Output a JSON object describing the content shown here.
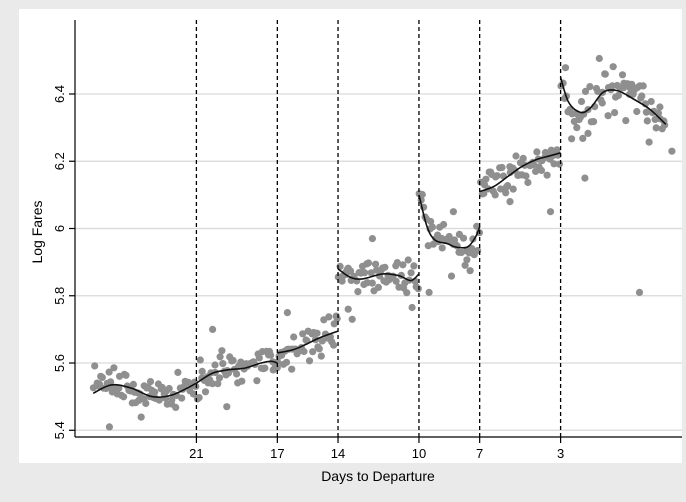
{
  "chart_data": {
    "type": "scatter",
    "title": "",
    "xlabel": "Days to Departure",
    "ylabel": "Log Fares",
    "x_reversed": true,
    "xlim": [
      27,
      -3
    ],
    "ylim": [
      5.38,
      6.62
    ],
    "xticks": [
      21,
      17,
      14,
      10,
      7,
      3
    ],
    "yticks": [
      5.4,
      5.6,
      5.8,
      6,
      6.2,
      6.4
    ],
    "ytick_labels": [
      "5.4",
      "5.6",
      "5.8",
      "6",
      "6.2",
      "6.4"
    ],
    "grid": true,
    "legend": "none",
    "breakpoints": [
      21,
      17,
      14,
      10,
      7,
      3
    ],
    "segments": [
      {
        "x_start": 26.1,
        "x_end": 21,
        "points": [
          [
            26.1,
            5.51
          ],
          [
            25.2,
            5.535
          ],
          [
            24.2,
            5.525
          ],
          [
            23.2,
            5.5
          ],
          [
            22.2,
            5.505
          ],
          [
            21,
            5.54
          ]
        ]
      },
      {
        "x_start": 21,
        "x_end": 17,
        "points": [
          [
            21,
            5.54
          ],
          [
            20.2,
            5.57
          ],
          [
            19.4,
            5.58
          ],
          [
            18.6,
            5.585
          ],
          [
            17.8,
            5.6
          ],
          [
            17.3,
            5.605
          ],
          [
            17,
            5.6
          ]
        ]
      },
      {
        "x_start": 17,
        "x_end": 14,
        "points": [
          [
            17,
            5.63
          ],
          [
            16.2,
            5.64
          ],
          [
            15.6,
            5.655
          ],
          [
            14.9,
            5.675
          ],
          [
            14,
            5.695
          ]
        ]
      },
      {
        "x_start": 14,
        "x_end": 10,
        "points": [
          [
            14,
            5.88
          ],
          [
            13.4,
            5.855
          ],
          [
            12.8,
            5.85
          ],
          [
            11.8,
            5.865
          ],
          [
            11,
            5.86
          ],
          [
            10.4,
            5.845
          ],
          [
            10,
            5.865
          ]
        ]
      },
      {
        "x_start": 10,
        "x_end": 7,
        "points": [
          [
            10,
            6.1
          ],
          [
            9.6,
            6.005
          ],
          [
            9.2,
            5.965
          ],
          [
            8.6,
            5.955
          ],
          [
            8.2,
            5.945
          ],
          [
            7.6,
            5.945
          ],
          [
            7.2,
            5.975
          ],
          [
            7,
            6.005
          ]
        ]
      },
      {
        "x_start": 7,
        "x_end": 3,
        "points": [
          [
            7,
            6.11
          ],
          [
            6.3,
            6.125
          ],
          [
            5.6,
            6.155
          ],
          [
            4.9,
            6.185
          ],
          [
            4.2,
            6.205
          ],
          [
            3.6,
            6.215
          ],
          [
            3,
            6.225
          ]
        ]
      },
      {
        "x_start": 3,
        "x_end": -2.2,
        "points": [
          [
            3,
            6.45
          ],
          [
            2.6,
            6.375
          ],
          [
            2,
            6.345
          ],
          [
            1.5,
            6.36
          ],
          [
            0.9,
            6.405
          ],
          [
            0.2,
            6.41
          ],
          [
            -0.6,
            6.385
          ],
          [
            -1.4,
            6.355
          ],
          [
            -2.2,
            6.31
          ]
        ]
      }
    ],
    "scatter_scatter_sd": [
      0.028,
      0.026,
      0.028,
      0.03,
      0.032,
      0.033,
      0.042
    ],
    "outliers": [
      [
        25.3,
        5.41
      ],
      [
        23.5,
        5.48
      ],
      [
        20.2,
        5.7
      ],
      [
        19.5,
        5.47
      ],
      [
        16.5,
        5.75
      ],
      [
        13.5,
        5.76
      ],
      [
        13.3,
        5.73
      ],
      [
        12.3,
        5.97
      ],
      [
        9.5,
        5.81
      ],
      [
        8.3,
        6.05
      ],
      [
        5.5,
        6.08
      ],
      [
        3.5,
        6.05
      ],
      [
        2.2,
        6.3
      ],
      [
        1.8,
        6.15
      ],
      [
        -0.9,
        5.81
      ],
      [
        -2.5,
        6.23
      ]
    ]
  }
}
